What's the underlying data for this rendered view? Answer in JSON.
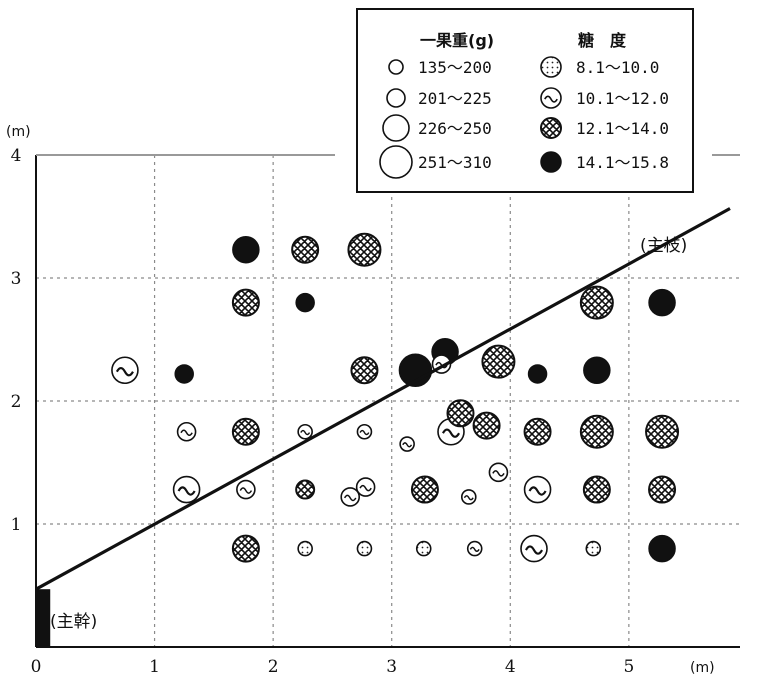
{
  "chart_data": {
    "type": "scatter",
    "title": "",
    "xlabel": "",
    "ylabel": "",
    "x_unit": "(m)",
    "y_unit": "(m)",
    "xlim": [
      0,
      5.6
    ],
    "ylim": [
      0,
      4
    ],
    "xticks": [
      "0",
      "1",
      "2",
      "3",
      "4",
      "5"
    ],
    "yticks": [
      "1",
      "2",
      "3",
      "4"
    ],
    "grid": true,
    "legend_placement": "top-right",
    "annotations": {
      "branch": "(主枝)",
      "trunk": "(主幹)"
    },
    "branch_line": {
      "x": [
        0,
        5.6
      ],
      "y": [
        0.47,
        3.5
      ]
    },
    "trunk_segment": {
      "x0": 0,
      "x1": 0.12,
      "y0": 0,
      "y1": 0.47
    },
    "legend": {
      "size_title": "一果重(g)",
      "sugar_title": "糖　度",
      "size_classes": [
        {
          "label": "135～200",
          "level": 1
        },
        {
          "label": "201～225",
          "level": 2
        },
        {
          "label": "226～250",
          "level": 3
        },
        {
          "label": "251～310",
          "level": 4
        }
      ],
      "sugar_classes": [
        {
          "label": "8.1～10.0",
          "pattern": "dots"
        },
        {
          "label": "10.1～12.0",
          "pattern": "wave"
        },
        {
          "label": "12.1～14.0",
          "pattern": "cross"
        },
        {
          "label": "14.1～15.8",
          "pattern": "solid"
        }
      ]
    },
    "points": [
      {
        "x": 0.75,
        "y": 2.25,
        "size": 3,
        "sugar": "wave"
      },
      {
        "x": 1.25,
        "y": 2.22,
        "size": 2,
        "sugar": "solid"
      },
      {
        "x": 1.77,
        "y": 3.23,
        "size": 3,
        "sugar": "solid"
      },
      {
        "x": 2.27,
        "y": 3.23,
        "size": 3,
        "sugar": "cross"
      },
      {
        "x": 2.77,
        "y": 3.23,
        "size": 4,
        "sugar": "cross"
      },
      {
        "x": 1.77,
        "y": 2.8,
        "size": 3,
        "sugar": "cross"
      },
      {
        "x": 2.27,
        "y": 2.8,
        "size": 2,
        "sugar": "solid"
      },
      {
        "x": 2.77,
        "y": 2.25,
        "size": 3,
        "sugar": "cross"
      },
      {
        "x": 3.2,
        "y": 2.25,
        "size": 4,
        "sugar": "solid"
      },
      {
        "x": 3.45,
        "y": 2.4,
        "size": 3,
        "sugar": "solid"
      },
      {
        "x": 3.42,
        "y": 2.3,
        "size": 2,
        "sugar": "wave"
      },
      {
        "x": 3.9,
        "y": 2.32,
        "size": 4,
        "sugar": "cross"
      },
      {
        "x": 4.23,
        "y": 2.22,
        "size": 2,
        "sugar": "solid"
      },
      {
        "x": 4.73,
        "y": 2.8,
        "size": 4,
        "sugar": "cross"
      },
      {
        "x": 4.73,
        "y": 2.25,
        "size": 3,
        "sugar": "solid"
      },
      {
        "x": 5.28,
        "y": 2.8,
        "size": 3,
        "sugar": "solid"
      },
      {
        "x": 1.27,
        "y": 1.75,
        "size": 2,
        "sugar": "wave"
      },
      {
        "x": 1.77,
        "y": 1.75,
        "size": 3,
        "sugar": "cross"
      },
      {
        "x": 2.27,
        "y": 1.75,
        "size": 1,
        "sugar": "wave"
      },
      {
        "x": 2.77,
        "y": 1.75,
        "size": 1,
        "sugar": "wave"
      },
      {
        "x": 3.13,
        "y": 1.65,
        "size": 1,
        "sugar": "wave"
      },
      {
        "x": 3.5,
        "y": 1.75,
        "size": 3,
        "sugar": "wave"
      },
      {
        "x": 3.58,
        "y": 1.9,
        "size": 3,
        "sugar": "cross"
      },
      {
        "x": 3.8,
        "y": 1.8,
        "size": 3,
        "sugar": "cross"
      },
      {
        "x": 4.23,
        "y": 1.75,
        "size": 3,
        "sugar": "cross"
      },
      {
        "x": 4.73,
        "y": 1.75,
        "size": 4,
        "sugar": "cross"
      },
      {
        "x": 5.28,
        "y": 1.75,
        "size": 4,
        "sugar": "cross"
      },
      {
        "x": 1.27,
        "y": 1.28,
        "size": 3,
        "sugar": "wave"
      },
      {
        "x": 1.77,
        "y": 1.28,
        "size": 2,
        "sugar": "wave"
      },
      {
        "x": 2.27,
        "y": 1.28,
        "size": 2,
        "sugar": "cross"
      },
      {
        "x": 2.65,
        "y": 1.22,
        "size": 2,
        "sugar": "wave"
      },
      {
        "x": 2.78,
        "y": 1.3,
        "size": 2,
        "sugar": "wave"
      },
      {
        "x": 3.28,
        "y": 1.28,
        "size": 3,
        "sugar": "cross"
      },
      {
        "x": 3.65,
        "y": 1.22,
        "size": 1,
        "sugar": "wave"
      },
      {
        "x": 3.9,
        "y": 1.42,
        "size": 2,
        "sugar": "wave"
      },
      {
        "x": 4.23,
        "y": 1.28,
        "size": 3,
        "sugar": "wave"
      },
      {
        "x": 4.73,
        "y": 1.28,
        "size": 3,
        "sugar": "cross"
      },
      {
        "x": 5.28,
        "y": 1.28,
        "size": 3,
        "sugar": "cross"
      },
      {
        "x": 1.77,
        "y": 0.8,
        "size": 3,
        "sugar": "cross"
      },
      {
        "x": 2.27,
        "y": 0.8,
        "size": 1,
        "sugar": "dots"
      },
      {
        "x": 2.77,
        "y": 0.8,
        "size": 1,
        "sugar": "dots"
      },
      {
        "x": 3.27,
        "y": 0.8,
        "size": 1,
        "sugar": "dots"
      },
      {
        "x": 3.7,
        "y": 0.8,
        "size": 1,
        "sugar": "wave"
      },
      {
        "x": 4.2,
        "y": 0.8,
        "size": 3,
        "sugar": "wave"
      },
      {
        "x": 4.7,
        "y": 0.8,
        "size": 1,
        "sugar": "dots"
      },
      {
        "x": 5.28,
        "y": 0.8,
        "size": 3,
        "sugar": "solid"
      }
    ]
  }
}
